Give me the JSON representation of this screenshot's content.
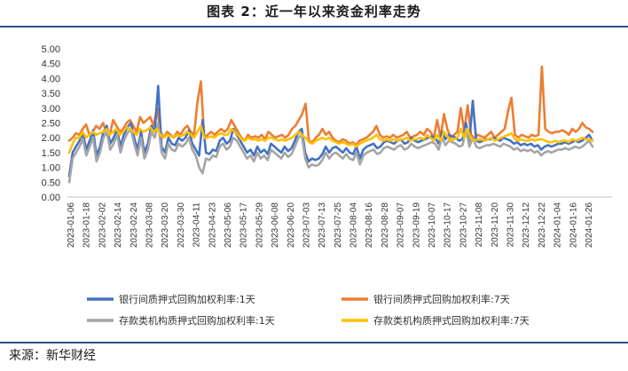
{
  "header": {
    "title": "图表 2：近一年以来资金利率走势"
  },
  "footer": {
    "source": "来源：新华财经"
  },
  "chart_data": {
    "type": "line",
    "title": "",
    "xlabel": "",
    "ylabel": "",
    "ylim": [
      0,
      5
    ],
    "y_ticks": [
      "5.00",
      "4.50",
      "4.00",
      "3.50",
      "3.00",
      "2.50",
      "2.00",
      "1.50",
      "1.00",
      "0.50",
      "0.00"
    ],
    "x_ticks": [
      "2023-01-06",
      "2023-01-18",
      "2023-02-02",
      "2023-02-14",
      "2023-02-24",
      "2023-03-08",
      "2023-03-20",
      "2023-03-30",
      "2023-04-11",
      "2023-04-23",
      "2023-05-06",
      "2023-05-17",
      "2023-05-29",
      "2023-06-08",
      "2023-06-20",
      "2023-07-03",
      "2023-07-13",
      "2023-07-25",
      "2023-08-04",
      "2023-08-16",
      "2023-08-28",
      "2023-09-07",
      "2023-09-19",
      "2023-10-07",
      "2023-10-17",
      "2023-10-27",
      "2023-11-08",
      "2023-11-20",
      "2023-11-30",
      "2023-12-12",
      "2023-12-22",
      "2024-01-04",
      "2024-01-16",
      "2024-01-26"
    ],
    "grid": false,
    "legend": "bottom",
    "colors": {
      "s1": "#4472C4",
      "s7": "#ED7D31",
      "d1": "#A5A5A5",
      "d7": "#FFC000"
    },
    "series": [
      {
        "name": "银行间质押式回购加权利率:1天",
        "color": "#4472C4",
        "values": [
          0.7,
          1.5,
          1.7,
          1.9,
          2.15,
          1.6,
          1.9,
          2.25,
          1.4,
          1.7,
          2.2,
          2.4,
          1.8,
          2.0,
          2.3,
          1.7,
          2.1,
          2.35,
          2.5,
          2.0,
          1.6,
          2.2,
          1.5,
          1.8,
          2.4,
          2.2,
          3.75,
          1.7,
          1.5,
          2.0,
          1.8,
          1.75,
          2.0,
          1.9,
          2.0,
          2.25,
          1.8,
          1.6,
          1.4,
          2.6,
          1.5,
          1.45,
          1.6,
          1.55,
          1.9,
          2.0,
          1.8,
          1.9,
          2.3,
          2.1,
          1.9,
          1.7,
          1.5,
          1.6,
          1.4,
          1.7,
          1.5,
          1.6,
          1.45,
          1.8,
          1.7,
          1.6,
          1.5,
          1.7,
          1.55,
          1.65,
          1.9,
          2.2,
          2.3,
          1.5,
          1.2,
          1.3,
          1.25,
          1.3,
          1.45,
          1.7,
          1.5,
          1.65,
          1.7,
          1.6,
          1.5,
          1.65,
          1.5,
          1.45,
          1.7,
          1.3,
          1.6,
          1.7,
          1.75,
          1.8,
          1.65,
          1.7,
          1.85,
          1.9,
          1.85,
          1.8,
          1.9,
          1.95,
          1.8,
          1.85,
          2.0,
          1.9,
          1.85,
          1.9,
          1.95,
          2.0,
          2.05,
          2.0,
          1.8,
          2.2,
          1.95,
          2.1,
          2.05,
          2.0,
          1.9,
          1.95,
          2.5,
          1.9,
          3.25,
          1.9,
          1.85,
          1.9,
          1.95,
          1.95,
          2.0,
          1.95,
          1.9,
          2.0,
          1.95,
          1.9,
          1.8,
          1.85,
          1.75,
          1.8,
          1.75,
          1.8,
          1.7,
          1.75,
          1.6,
          1.7,
          1.75,
          1.7,
          1.75,
          1.8,
          1.8,
          1.85,
          1.8,
          1.85,
          1.9,
          1.85,
          1.9,
          2.0,
          2.1,
          1.9
        ],
        "hint": "bank 1-day weighted repo rate"
      },
      {
        "name": "银行间质押式回购加权利率:7天",
        "color": "#ED7D31",
        "values": [
          1.9,
          2.0,
          2.15,
          2.1,
          2.3,
          2.45,
          2.1,
          2.2,
          2.4,
          2.3,
          2.5,
          2.2,
          2.1,
          2.6,
          2.4,
          2.2,
          2.3,
          2.5,
          2.6,
          2.4,
          2.2,
          2.7,
          2.5,
          2.6,
          2.7,
          2.4,
          3.0,
          2.2,
          2.0,
          2.2,
          2.1,
          2.0,
          2.2,
          2.1,
          2.3,
          2.4,
          2.2,
          2.1,
          3.2,
          3.9,
          2.0,
          2.1,
          2.2,
          2.1,
          2.2,
          2.3,
          2.2,
          2.3,
          2.6,
          2.4,
          2.2,
          2.0,
          1.9,
          2.1,
          2.0,
          2.05,
          2.0,
          2.1,
          1.95,
          2.2,
          2.1,
          2.0,
          2.05,
          2.1,
          2.0,
          2.1,
          2.3,
          2.4,
          2.6,
          2.8,
          3.15,
          1.9,
          1.85,
          2.0,
          2.1,
          2.3,
          2.1,
          2.2,
          2.0,
          1.9,
          1.85,
          1.95,
          1.9,
          1.8,
          1.85,
          1.75,
          1.9,
          1.95,
          2.0,
          2.1,
          2.2,
          2.4,
          2.1,
          2.0,
          2.05,
          2.0,
          2.1,
          2.0,
          2.05,
          2.1,
          2.2,
          2.0,
          2.05,
          2.1,
          2.2,
          2.1,
          2.3,
          2.2,
          2.0,
          2.6,
          2.0,
          2.8,
          2.3,
          2.0,
          2.1,
          2.2,
          3.0,
          2.2,
          3.1,
          2.1,
          2.0,
          2.1,
          2.05,
          2.0,
          2.1,
          2.2,
          2.0,
          2.1,
          2.2,
          2.3,
          2.9,
          3.35,
          2.1,
          2.0,
          2.1,
          2.05,
          2.0,
          2.1,
          2.05,
          2.1,
          4.4,
          2.3,
          2.2,
          2.15,
          2.2,
          2.2,
          2.25,
          2.2,
          2.1,
          2.3,
          2.2,
          2.3,
          2.5,
          2.35,
          2.3,
          2.2
        ],
        "hint": "bank 7-day weighted repo rate"
      },
      {
        "name": "存款类机构质押式回购加权利率:1天",
        "color": "#A5A5A5",
        "values": [
          0.5,
          1.3,
          1.5,
          1.7,
          1.95,
          1.4,
          1.7,
          2.0,
          1.2,
          1.5,
          2.0,
          2.2,
          1.6,
          1.8,
          2.1,
          1.5,
          1.9,
          2.15,
          2.3,
          1.8,
          1.4,
          2.0,
          1.3,
          1.6,
          2.2,
          2.0,
          2.5,
          1.5,
          1.3,
          1.8,
          1.6,
          1.55,
          1.8,
          1.7,
          1.8,
          2.0,
          1.6,
          1.4,
          1.0,
          0.8,
          1.3,
          1.25,
          1.4,
          1.35,
          1.7,
          1.8,
          1.6,
          1.7,
          2.0,
          1.9,
          1.7,
          1.5,
          1.3,
          1.4,
          1.2,
          1.5,
          1.3,
          1.4,
          1.25,
          1.6,
          1.5,
          1.4,
          1.3,
          1.5,
          1.35,
          1.45,
          1.7,
          2.0,
          2.1,
          1.3,
          1.0,
          1.1,
          1.05,
          1.1,
          1.25,
          1.5,
          1.3,
          1.45,
          1.5,
          1.4,
          1.3,
          1.45,
          1.3,
          1.25,
          1.5,
          1.1,
          1.4,
          1.5,
          1.55,
          1.6,
          1.45,
          1.5,
          1.65,
          1.7,
          1.65,
          1.6,
          1.7,
          1.75,
          1.6,
          1.65,
          1.8,
          1.7,
          1.65,
          1.7,
          1.75,
          1.8,
          1.85,
          1.8,
          1.6,
          2.0,
          1.75,
          1.9,
          1.85,
          1.8,
          1.7,
          1.75,
          2.3,
          1.7,
          2.0,
          1.7,
          1.65,
          1.7,
          1.75,
          1.75,
          1.8,
          1.75,
          1.7,
          1.8,
          1.75,
          1.7,
          1.6,
          1.65,
          1.55,
          1.6,
          1.55,
          1.6,
          1.5,
          1.55,
          1.4,
          1.5,
          1.55,
          1.5,
          1.55,
          1.6,
          1.6,
          1.65,
          1.6,
          1.65,
          1.7,
          1.65,
          1.7,
          1.8,
          1.9,
          1.7
        ],
        "hint": "depository 1-day weighted repo rate"
      },
      {
        "name": "存款类机构质押式回购加权利率:7天",
        "color": "#FFC000",
        "values": [
          1.5,
          1.8,
          2.0,
          2.0,
          2.2,
          2.0,
          2.1,
          2.2,
          2.1,
          2.15,
          2.2,
          2.3,
          2.1,
          2.2,
          2.3,
          2.1,
          2.2,
          2.35,
          2.3,
          2.2,
          2.1,
          2.3,
          2.2,
          2.25,
          2.35,
          2.2,
          2.3,
          2.1,
          2.0,
          2.1,
          2.05,
          2.0,
          2.1,
          2.05,
          2.1,
          2.2,
          2.1,
          2.0,
          2.2,
          2.4,
          2.0,
          2.0,
          2.05,
          2.0,
          2.1,
          2.15,
          2.1,
          2.1,
          2.3,
          2.2,
          2.1,
          1.95,
          1.9,
          2.0,
          1.95,
          1.95,
          1.9,
          1.95,
          1.9,
          2.0,
          2.0,
          1.95,
          1.9,
          1.95,
          1.9,
          1.95,
          2.0,
          2.1,
          2.2,
          2.1,
          2.0,
          1.85,
          1.8,
          1.9,
          1.95,
          2.0,
          1.95,
          2.0,
          1.9,
          1.85,
          1.8,
          1.85,
          1.8,
          1.75,
          1.8,
          1.7,
          1.8,
          1.85,
          1.9,
          1.95,
          2.0,
          2.1,
          1.95,
          1.9,
          1.95,
          1.9,
          1.95,
          1.9,
          1.95,
          1.95,
          2.0,
          1.9,
          1.95,
          1.95,
          2.0,
          1.95,
          2.1,
          2.0,
          1.9,
          2.1,
          1.9,
          2.2,
          2.05,
          1.9,
          1.95,
          2.0,
          2.3,
          2.0,
          2.3,
          1.95,
          1.9,
          1.95,
          1.95,
          1.9,
          1.95,
          2.0,
          1.9,
          1.95,
          2.0,
          2.05,
          2.1,
          2.15,
          1.95,
          1.9,
          1.95,
          1.9,
          1.9,
          1.95,
          1.9,
          1.95,
          1.95,
          1.9,
          1.85,
          1.85,
          1.9,
          1.85,
          1.9,
          1.9,
          1.85,
          1.95,
          1.9,
          1.95,
          2.0,
          1.95,
          1.95,
          1.9
        ],
        "hint": "depository 7-day weighted repo rate"
      }
    ]
  }
}
